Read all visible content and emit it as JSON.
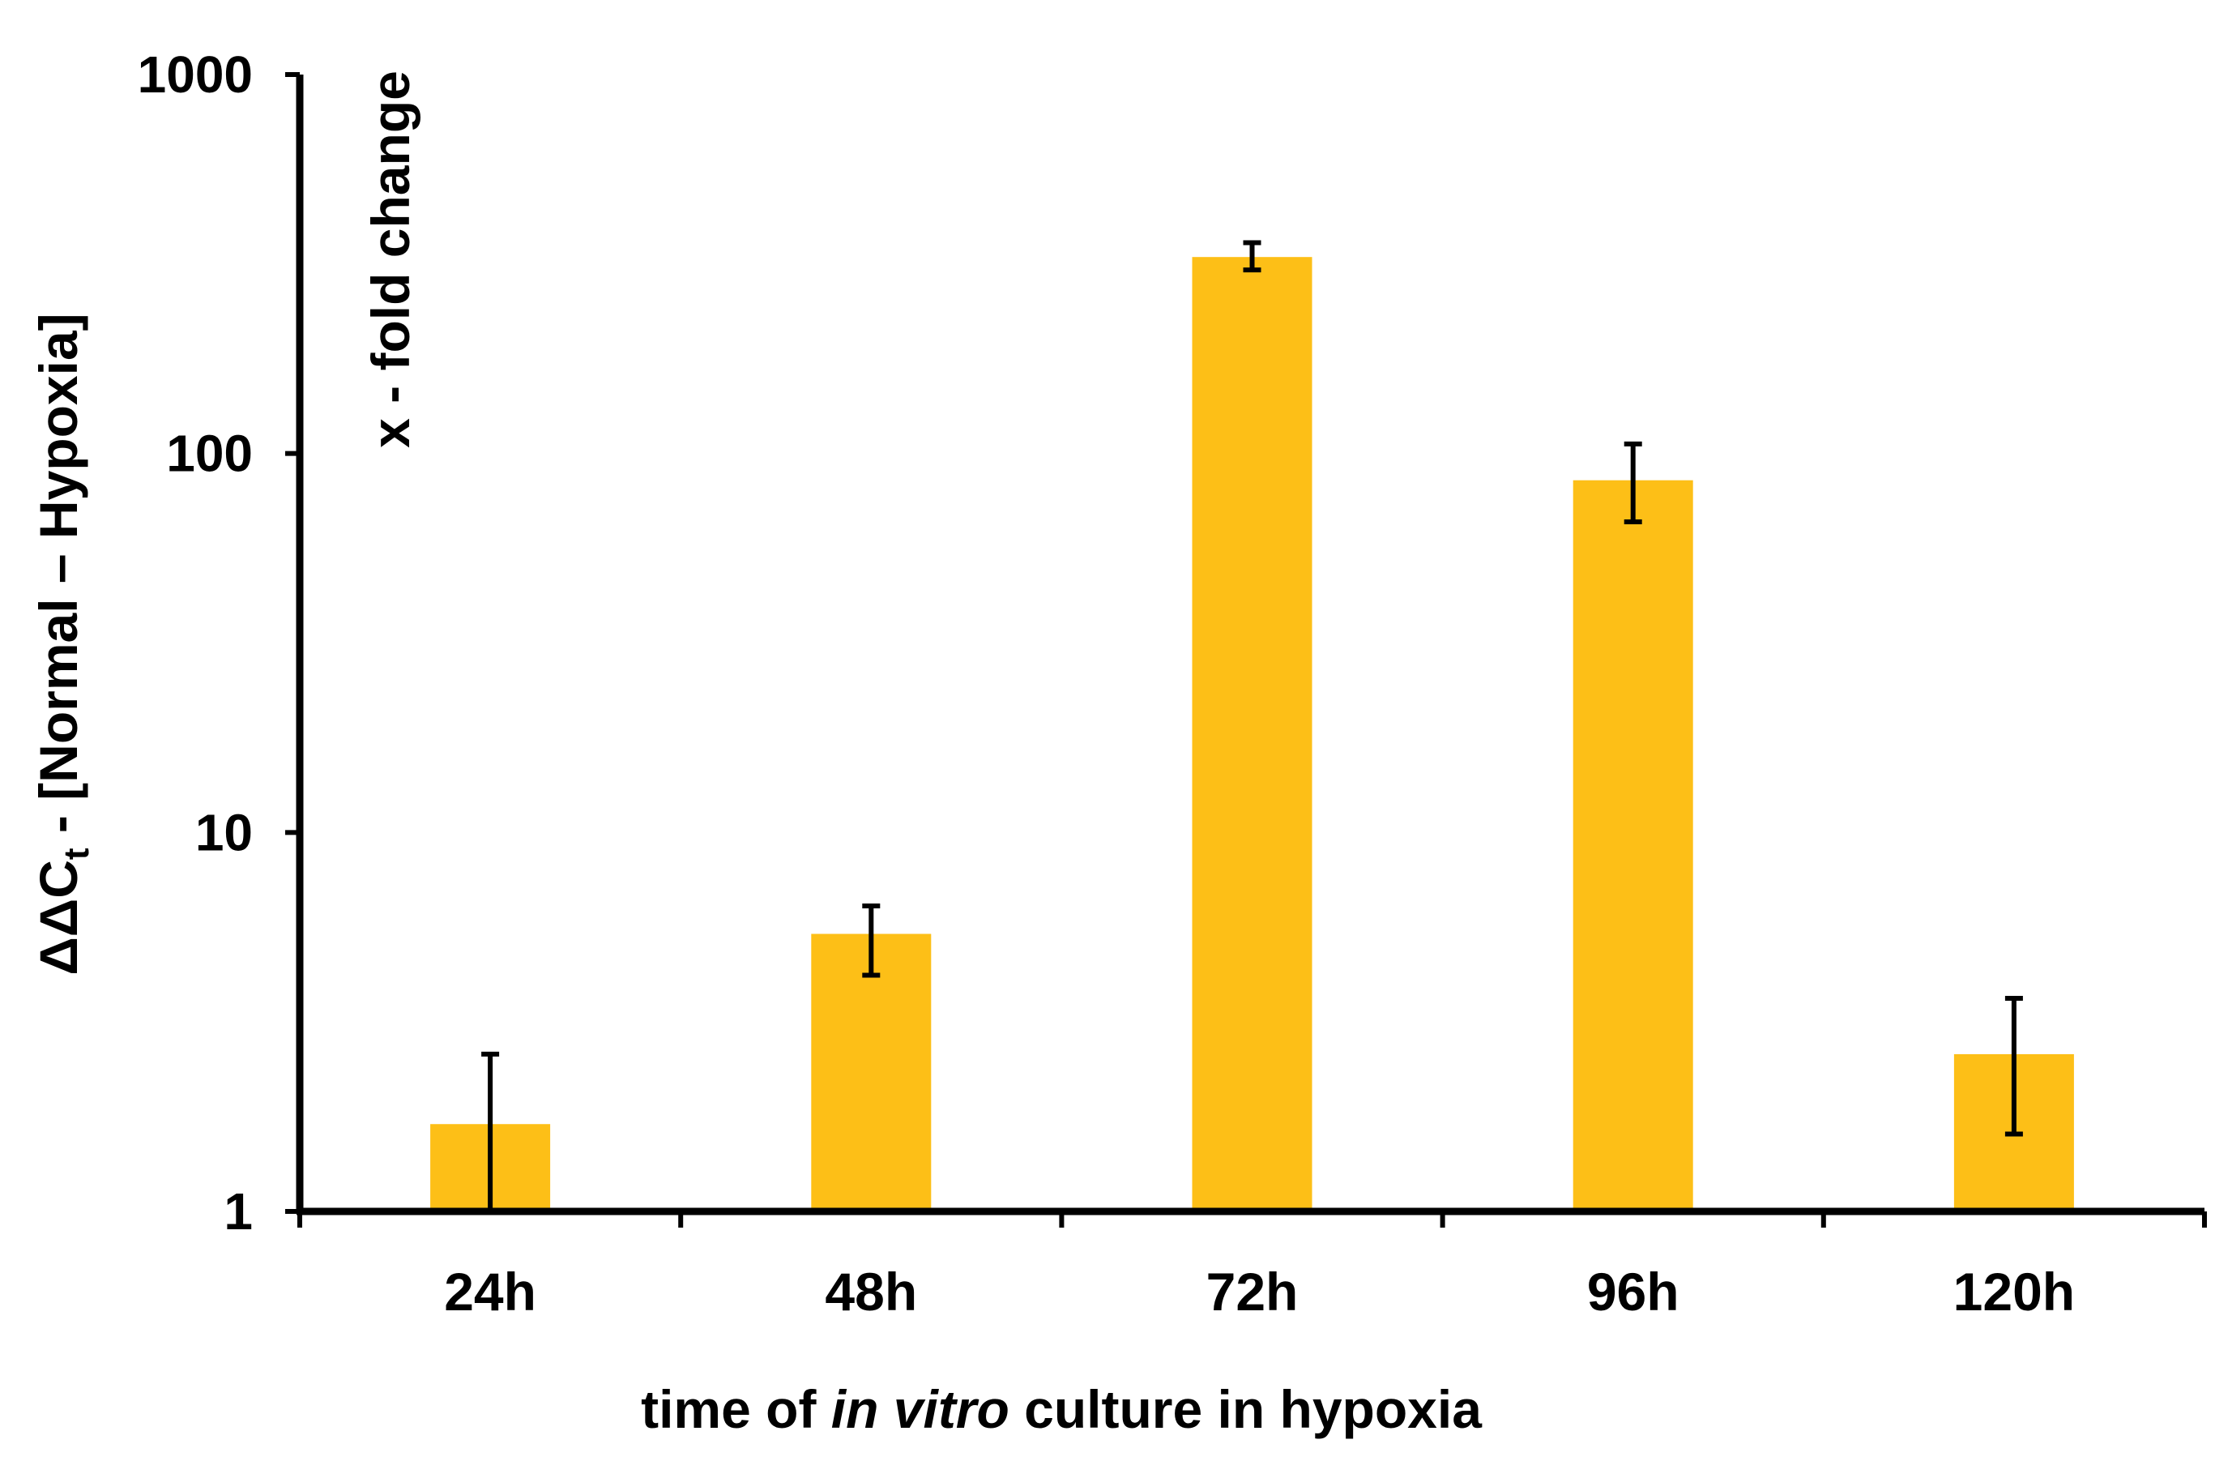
{
  "chart_data": {
    "type": "bar",
    "yscale": "log",
    "ylim": [
      1,
      1000
    ],
    "yticks": [
      "1",
      "10",
      "100",
      "1000"
    ],
    "categories": [
      "24h",
      "48h",
      "72h",
      "96h",
      "120h"
    ],
    "values": [
      1.7,
      5.4,
      330,
      85,
      2.6
    ],
    "error_low": [
      1.0,
      4.2,
      305,
      66,
      1.6
    ],
    "error_high": [
      2.6,
      6.4,
      360,
      106,
      3.65
    ],
    "xlabel_parts": [
      "time of ",
      "in vitro",
      " culture in hypoxia"
    ],
    "ylabel_delta": "ΔΔC",
    "ylabel_sub": "t",
    "ylabel_rest": " -    [Normal – Hypoxia]",
    "ylabel_secondary": "x - fold change",
    "colors": {
      "bar": "#FDBF17",
      "axis": "#000000",
      "error": "#000000"
    }
  }
}
